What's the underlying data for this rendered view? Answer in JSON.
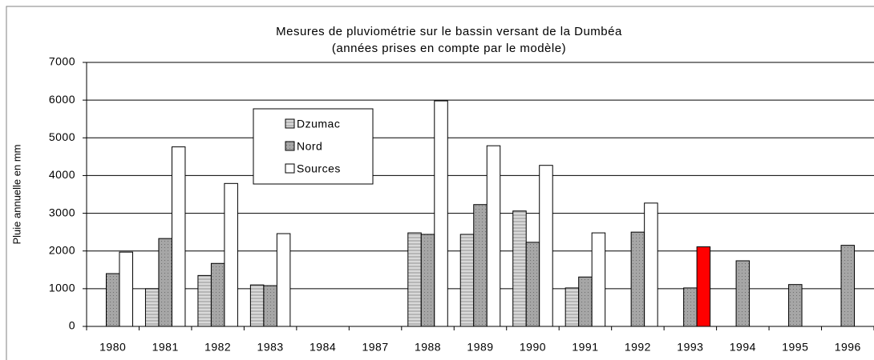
{
  "chart_data": {
    "type": "bar",
    "title": "Mesures de pluviométrie sur le bassin versant de la Dumbéa",
    "subtitle": "(années prises en compte par le modèle)",
    "y_label": "Pluie annuelle en mm",
    "categories": [
      "1980",
      "1981",
      "1982",
      "1983",
      "1984",
      "1987",
      "1988",
      "1989",
      "1990",
      "1991",
      "1992",
      "1993",
      "1994",
      "1995",
      "1996"
    ],
    "series": [
      {
        "name": "Dzumac",
        "color": "#d9d9d9",
        "values": [
          null,
          1000,
          1350,
          1100,
          null,
          null,
          2480,
          2440,
          3060,
          1020,
          null,
          null,
          null,
          null,
          null
        ]
      },
      {
        "name": "Nord",
        "color": "#a6a6a6",
        "values": [
          1400,
          2330,
          1670,
          1080,
          null,
          null,
          2440,
          3230,
          2230,
          1310,
          2500,
          1020,
          1740,
          1110,
          2150
        ]
      },
      {
        "name": "Sources",
        "color": "#ffffff",
        "values": [
          1970,
          4760,
          3790,
          2460,
          null,
          null,
          5980,
          4790,
          4270,
          2480,
          3270,
          2110,
          null,
          null,
          null
        ],
        "highlight_index": 11,
        "highlight_color": "#ff0000"
      }
    ],
    "ylim": [
      0,
      7000
    ],
    "yticks": [
      0,
      1000,
      2000,
      3000,
      4000,
      5000,
      6000,
      7000
    ],
    "grid": true
  }
}
